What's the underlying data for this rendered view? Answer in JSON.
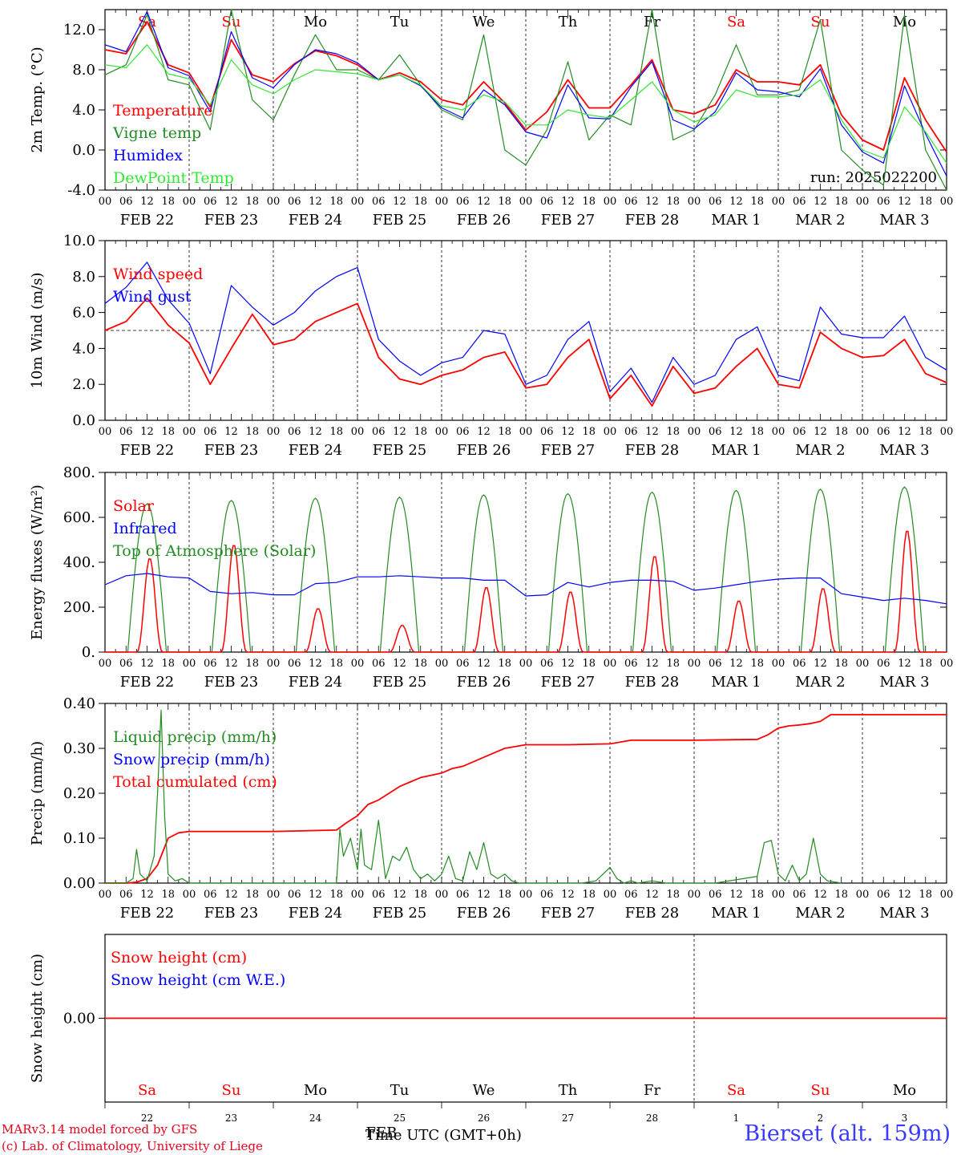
{
  "footer": {
    "credit_line_1": "MARv3.14 model forced by GFS",
    "credit_line_2": "(c) Lab. of Climatology, University of Liege",
    "x_title": "Time UTC (GMT+0h)",
    "station": "Bierset (alt. 159m)"
  },
  "colors": {
    "red": "#ff0000",
    "green": "#228b22",
    "blue": "#0000ff",
    "light_green": "#33e633",
    "weekend_label": "#ff0000",
    "weekday_label": "#000000"
  },
  "chart_data": [
    {
      "type": "line",
      "id": "temperature",
      "ylabel": "2m Temp. (°C)",
      "ylim": [
        -4,
        14
      ],
      "yticks": [
        "-4.0",
        "0.0",
        "4.0",
        "8.0",
        "12.0"
      ],
      "ytick_values": [
        -4,
        0,
        4,
        8,
        12
      ],
      "xlim_hours": [
        0,
        240
      ],
      "hour_ticks": [
        "00",
        "06",
        "12",
        "18"
      ],
      "day_labels": [
        "FEB 22",
        "FEB 23",
        "FEB 24",
        "FEB 25",
        "FEB 26",
        "FEB 27",
        "FEB 28",
        "MAR  1",
        "MAR  2",
        "MAR  3"
      ],
      "weekday_labels": [
        "Sa",
        "Su",
        "Mo",
        "Tu",
        "We",
        "Th",
        "Fr",
        "Sa",
        "Su",
        "Mo"
      ],
      "annotation": "run: 2025022200",
      "legend": [
        "Temperature",
        "Vigne temp",
        "Humidex",
        "DewPoint Temp"
      ],
      "series": [
        {
          "name": "Temperature",
          "color": "red",
          "x": [
            0,
            6,
            12,
            18,
            24,
            30,
            36,
            42,
            48,
            54,
            60,
            66,
            72,
            78,
            84,
            90,
            96,
            102,
            108,
            114,
            120,
            126,
            132,
            138,
            144,
            150,
            156,
            162,
            168,
            174,
            180,
            186,
            192,
            198,
            204,
            210,
            216,
            222,
            228,
            234,
            240
          ],
          "values": [
            10,
            9.6,
            12.8,
            8.5,
            7.7,
            4.3,
            11,
            7.5,
            6.8,
            8.6,
            9.9,
            9.4,
            8.5,
            7,
            7.7,
            6.8,
            5,
            4.5,
            6.8,
            4.7,
            2,
            3.8,
            7,
            4.2,
            4.2,
            6.5,
            9,
            4,
            3.6,
            4.5,
            8,
            6.8,
            6.8,
            6.5,
            8.5,
            3.5,
            1,
            0,
            7.2,
            3,
            -0.2
          ]
        },
        {
          "name": "Vigne temp",
          "color": "green",
          "x": [
            0,
            6,
            12,
            18,
            24,
            30,
            36,
            42,
            48,
            54,
            60,
            66,
            72,
            78,
            84,
            90,
            96,
            102,
            108,
            114,
            120,
            126,
            132,
            138,
            144,
            150,
            156,
            162,
            168,
            174,
            180,
            186,
            192,
            198,
            204,
            210,
            216,
            222,
            228,
            234,
            240
          ],
          "values": [
            7.5,
            8.5,
            13.5,
            7,
            6.5,
            2,
            14,
            5,
            3,
            7.5,
            11.5,
            8,
            8,
            7,
            9.5,
            6.5,
            4,
            3,
            11.5,
            0,
            -1.5,
            2,
            8.8,
            1,
            3.5,
            2.5,
            14,
            1,
            2,
            5.5,
            10.5,
            5.5,
            5.5,
            6,
            13,
            0,
            -2,
            -3.5,
            13.5,
            0,
            -4
          ]
        },
        {
          "name": "Humidex",
          "color": "blue",
          "x": [
            0,
            6,
            12,
            18,
            24,
            30,
            36,
            42,
            48,
            54,
            60,
            66,
            72,
            78,
            84,
            90,
            96,
            102,
            108,
            114,
            120,
            126,
            132,
            138,
            144,
            150,
            156,
            162,
            168,
            174,
            180,
            186,
            192,
            198,
            204,
            210,
            216,
            222,
            228,
            234,
            240
          ],
          "values": [
            10.5,
            9.8,
            13.8,
            8.2,
            7.4,
            3.8,
            11.8,
            7.2,
            6.2,
            8.5,
            10,
            9.6,
            8.7,
            7,
            7.5,
            6.4,
            4.2,
            3.2,
            6,
            4.5,
            1.8,
            1.2,
            6.5,
            3.2,
            3.1,
            6.3,
            8.8,
            3,
            2.1,
            3.8,
            7.7,
            6,
            5.8,
            5.3,
            8.1,
            2.5,
            -0.2,
            -1.3,
            6.4,
            1.6,
            -2.6
          ]
        },
        {
          "name": "DewPoint Temp",
          "color": "light_green",
          "x": [
            0,
            6,
            12,
            18,
            24,
            30,
            36,
            42,
            48,
            54,
            60,
            66,
            72,
            78,
            84,
            90,
            96,
            102,
            108,
            114,
            120,
            126,
            132,
            138,
            144,
            150,
            156,
            162,
            168,
            174,
            180,
            186,
            192,
            198,
            204,
            210,
            216,
            222,
            228,
            234,
            240
          ],
          "values": [
            8.5,
            8.2,
            10.5,
            7.6,
            7.1,
            4.5,
            9,
            6.5,
            5.6,
            7,
            8,
            7.8,
            7.6,
            7,
            7.5,
            6.5,
            4.4,
            4,
            5.5,
            4.8,
            2.5,
            2.5,
            4,
            3.5,
            3.2,
            5,
            6.8,
            4,
            2.8,
            3.5,
            6,
            5.3,
            5.3,
            5.5,
            7,
            3,
            0,
            -0.8,
            4.3,
            1.8,
            -1.3
          ]
        }
      ]
    },
    {
      "type": "line",
      "id": "wind",
      "ylabel": "10m Wind (m/s)",
      "ylim": [
        0,
        10
      ],
      "yticks": [
        "0.0",
        "2.0",
        "4.0",
        "6.0",
        "8.0",
        "10.0"
      ],
      "ytick_values": [
        0,
        2,
        4,
        6,
        8,
        10
      ],
      "reference_line": 5,
      "day_labels": [
        "FEB 22",
        "FEB 23",
        "FEB 24",
        "FEB 25",
        "FEB 26",
        "FEB 27",
        "FEB 28",
        "MAR  1",
        "MAR  2",
        "MAR  3"
      ],
      "legend": [
        "Wind speed",
        "Wind gust"
      ],
      "series": [
        {
          "name": "Wind speed",
          "color": "red",
          "x": [
            0,
            6,
            12,
            18,
            24,
            30,
            36,
            42,
            48,
            54,
            60,
            66,
            72,
            78,
            84,
            90,
            96,
            102,
            108,
            114,
            120,
            126,
            132,
            138,
            144,
            150,
            156,
            162,
            168,
            174,
            180,
            186,
            192,
            198,
            204,
            210,
            216,
            222,
            228,
            234,
            240
          ],
          "values": [
            5,
            5.5,
            6.8,
            5.3,
            4.3,
            2,
            4,
            5.9,
            4.2,
            4.5,
            5.5,
            6,
            6.5,
            3.5,
            2.3,
            2,
            2.5,
            2.8,
            3.5,
            3.8,
            1.8,
            2,
            3.5,
            4.5,
            1.2,
            2.5,
            0.8,
            3,
            1.5,
            1.8,
            3,
            4,
            2,
            1.8,
            4.9,
            4,
            3.5,
            3.6,
            4.5,
            2.6,
            2.1
          ]
        },
        {
          "name": "Wind gust",
          "color": "blue",
          "x": [
            0,
            6,
            12,
            18,
            24,
            30,
            36,
            42,
            48,
            54,
            60,
            66,
            72,
            78,
            84,
            90,
            96,
            102,
            108,
            114,
            120,
            126,
            132,
            138,
            144,
            150,
            156,
            162,
            168,
            174,
            180,
            186,
            192,
            198,
            204,
            210,
            216,
            222,
            228,
            234,
            240
          ],
          "values": [
            6.5,
            7.4,
            8.8,
            6.7,
            5.4,
            2.6,
            7.5,
            6.3,
            5.3,
            6,
            7.2,
            8,
            8.5,
            4.5,
            3.3,
            2.5,
            3.2,
            3.5,
            5,
            4.8,
            2,
            2.5,
            4.5,
            5.5,
            1.6,
            2.9,
            1,
            3.5,
            2,
            2.5,
            4.5,
            5.2,
            2.5,
            2.2,
            6.3,
            4.8,
            4.6,
            4.6,
            5.8,
            3.5,
            2.8
          ]
        }
      ]
    },
    {
      "type": "line",
      "id": "energy",
      "ylabel": "Energy fluxes (W/m²)",
      "ylim": [
        0,
        800
      ],
      "yticks": [
        "0.",
        "200.",
        "400.",
        "600.",
        "800."
      ],
      "ytick_values": [
        0,
        200,
        400,
        600,
        800
      ],
      "day_labels": [
        "FEB 22",
        "FEB 23",
        "FEB 24",
        "FEB 25",
        "FEB 26",
        "FEB 27",
        "FEB 28",
        "MAR  1",
        "MAR  2",
        "MAR  3"
      ],
      "legend": [
        "Solar",
        "Infrared",
        "Top of Atmosphere (Solar)"
      ],
      "toa_peaks": [
        660,
        675,
        685,
        690,
        700,
        705,
        712,
        720,
        725,
        735
      ],
      "solar_peaks": [
        420,
        480,
        195,
        120,
        290,
        270,
        430,
        230,
        285,
        545
      ],
      "series": [
        {
          "name": "Infrared",
          "color": "blue",
          "x": [
            0,
            6,
            12,
            18,
            24,
            30,
            36,
            42,
            48,
            54,
            60,
            66,
            72,
            78,
            84,
            90,
            96,
            102,
            108,
            114,
            120,
            126,
            132,
            138,
            144,
            150,
            156,
            162,
            168,
            174,
            180,
            186,
            192,
            198,
            204,
            210,
            216,
            222,
            228,
            234,
            240
          ],
          "values": [
            300,
            340,
            350,
            335,
            330,
            270,
            260,
            265,
            255,
            255,
            305,
            310,
            335,
            335,
            340,
            335,
            330,
            330,
            320,
            320,
            250,
            255,
            310,
            290,
            310,
            320,
            320,
            315,
            275,
            285,
            300,
            315,
            325,
            330,
            330,
            260,
            245,
            230,
            240,
            230,
            215
          ]
        }
      ]
    },
    {
      "type": "line",
      "id": "precip",
      "ylabel": "Precip (mm/h)",
      "ylim": [
        0,
        0.4
      ],
      "yticks": [
        "0.00",
        "0.10",
        "0.20",
        "0.30",
        "0.40"
      ],
      "ytick_values": [
        0,
        0.1,
        0.2,
        0.3,
        0.4
      ],
      "day_labels": [
        "FEB 22",
        "FEB 23",
        "FEB 24",
        "FEB 25",
        "FEB 26",
        "FEB 27",
        "FEB 28",
        "MAR  1",
        "MAR  2",
        "MAR  3"
      ],
      "legend": [
        "Liquid precip (mm/h)",
        "Snow precip (mm/h)",
        "Total cumulated (cm)"
      ],
      "series": [
        {
          "name": "Total cumulated (cm)",
          "color": "red",
          "x": [
            0,
            6,
            9,
            12,
            15,
            18,
            21,
            24,
            48,
            66,
            69,
            72,
            75,
            78,
            81,
            84,
            87,
            90,
            93,
            96,
            99,
            102,
            105,
            108,
            111,
            114,
            120,
            126,
            132,
            144,
            150,
            156,
            168,
            186,
            189,
            192,
            195,
            198,
            201,
            204,
            207,
            210,
            240
          ],
          "values": [
            0,
            0,
            0.002,
            0.01,
            0.04,
            0.1,
            0.112,
            0.115,
            0.115,
            0.118,
            0.135,
            0.15,
            0.175,
            0.185,
            0.2,
            0.215,
            0.225,
            0.235,
            0.24,
            0.245,
            0.255,
            0.26,
            0.27,
            0.28,
            0.29,
            0.3,
            0.308,
            0.308,
            0.308,
            0.31,
            0.318,
            0.318,
            0.318,
            0.32,
            0.33,
            0.345,
            0.35,
            0.352,
            0.355,
            0.36,
            0.375,
            0.375,
            0.375
          ]
        },
        {
          "name": "Liquid precip (mm/h)",
          "color": "green",
          "x": [
            0,
            6,
            8,
            9,
            10,
            12,
            14,
            15,
            16,
            17,
            18,
            20,
            22,
            24,
            66,
            67,
            68,
            70,
            72,
            73,
            74,
            76,
            78,
            80,
            82,
            84,
            86,
            88,
            90,
            92,
            94,
            96,
            98,
            100,
            102,
            104,
            106,
            108,
            110,
            112,
            114,
            116,
            118,
            120,
            136,
            140,
            144,
            146,
            148,
            150,
            152,
            156,
            160,
            174,
            186,
            188,
            190,
            192,
            194,
            196,
            198,
            200,
            202,
            204,
            206,
            210
          ],
          "values": [
            0,
            0,
            0.01,
            0.075,
            0.02,
            0.005,
            0.06,
            0.2,
            0.385,
            0.15,
            0.02,
            0.005,
            0.01,
            0,
            0,
            0.12,
            0.06,
            0.1,
            0.03,
            0.12,
            0.04,
            0.03,
            0.14,
            0.01,
            0.06,
            0.05,
            0.08,
            0.03,
            0.01,
            0.02,
            0.005,
            0.02,
            0.06,
            0.01,
            0.005,
            0.07,
            0.03,
            0.09,
            0.02,
            0.01,
            0.02,
            0.005,
            0,
            0,
            0,
            0.005,
            0.035,
            0.01,
            0,
            0.005,
            0,
            0.005,
            0,
            0,
            0.015,
            0.09,
            0.095,
            0.02,
            0.005,
            0.04,
            0.005,
            0.02,
            0.1,
            0.02,
            0.005,
            0
          ]
        }
      ]
    },
    {
      "type": "line",
      "id": "snow",
      "ylabel": "Snow height (cm)",
      "ylim": [
        -1,
        1
      ],
      "yticks": [
        "0.00"
      ],
      "ytick_values": [
        0
      ],
      "legend": [
        "Snow height (cm)",
        "Snow height (cm W.E.)"
      ],
      "weekday_labels": [
        "Sa",
        "Su",
        "Mo",
        "Tu",
        "We",
        "Th",
        "Fr",
        "Sa",
        "Su",
        "Mo"
      ],
      "day_numbers": [
        "22",
        "23",
        "24",
        "25",
        "26",
        "27",
        "28",
        "1",
        "2",
        "3"
      ],
      "month_labels": [
        "FEB",
        "MAR"
      ],
      "series": [
        {
          "name": "Snow height (cm)",
          "color": "red",
          "x": [
            0,
            240
          ],
          "values": [
            0,
            0
          ]
        }
      ]
    }
  ]
}
